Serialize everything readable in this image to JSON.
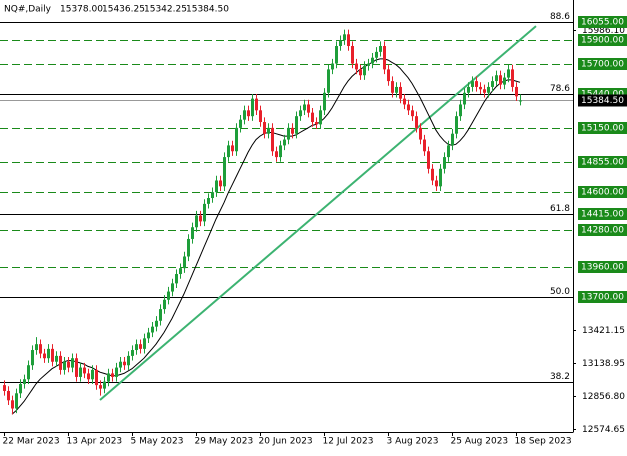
{
  "chart_data": {
    "type": "candlestick",
    "symbol": "NQ#,Daily",
    "header_ohlc": [
      "15378.00",
      "15436.25",
      "15342.25",
      "15384.50"
    ],
    "ylim": [
      12549,
      16158
    ],
    "xlim": [
      -1,
      142.25
    ],
    "yticks": [
      {
        "value": 15986.1,
        "label": "15986.10"
      },
      {
        "value": 13421.15,
        "label": "13421.15"
      },
      {
        "value": 13138.95,
        "label": "13138.95"
      },
      {
        "value": 12856.8,
        "label": "12856.80"
      },
      {
        "value": 12574.65,
        "label": "12574.65"
      }
    ],
    "xticks": [
      {
        "value": 0,
        "label": "22 Mar 2023"
      },
      {
        "value": 16,
        "label": "13 Apr 2023"
      },
      {
        "value": 32,
        "label": "5 May 2023"
      },
      {
        "value": 48,
        "label": "29 May 2023"
      },
      {
        "value": 64,
        "label": "20 Jun 2023"
      },
      {
        "value": 80,
        "label": "12 Jul 2023"
      },
      {
        "value": 96,
        "label": "3 Aug 2023"
      },
      {
        "value": 112,
        "label": "25 Aug 2023"
      },
      {
        "value": 128,
        "label": "18 Sep 2023"
      }
    ],
    "up_color": "#1e9e3a",
    "down_color": "#e8202a",
    "level_color": "#1a8a1a",
    "levels": [
      {
        "value": 16055,
        "label": "16055.00"
      },
      {
        "value": 15900,
        "label": "15900.00"
      },
      {
        "value": 15700,
        "label": "15700.00"
      },
      {
        "value": 15440,
        "label": "15440.00"
      },
      {
        "value": 15150,
        "label": "15150.00"
      },
      {
        "value": 14855,
        "label": "14855.00"
      },
      {
        "value": 14600,
        "label": "14600.00"
      },
      {
        "value": 14415,
        "label": "14415.00"
      },
      {
        "value": 14280,
        "label": "14280.00"
      },
      {
        "value": 13960,
        "label": "13960.00"
      },
      {
        "value": 13700,
        "label": "13700.00"
      }
    ],
    "fib_levels": [
      {
        "value": 16055,
        "label": "88.6"
      },
      {
        "value": 15440,
        "label": "78.6"
      },
      {
        "value": 14415,
        "label": "61.8"
      },
      {
        "value": 13700,
        "label": "50.0"
      },
      {
        "value": 12980,
        "label": "38.2"
      }
    ],
    "current_price": {
      "value": 15384.5,
      "label": "15384.50"
    },
    "trendline": {
      "x": [
        24,
        133
      ],
      "y": [
        12823,
        16020
      ],
      "color": "#3cb371"
    },
    "ohlc": [
      [
        12950,
        12990,
        12860,
        12900
      ],
      [
        12900,
        12940,
        12780,
        12820
      ],
      [
        12820,
        12860,
        12700,
        12750
      ],
      [
        12750,
        12920,
        12710,
        12880
      ],
      [
        12880,
        13000,
        12840,
        12960
      ],
      [
        12960,
        13040,
        12920,
        13000
      ],
      [
        13000,
        13160,
        12960,
        13120
      ],
      [
        13120,
        13290,
        13080,
        13250
      ],
      [
        13250,
        13360,
        13210,
        13300
      ],
      [
        13300,
        13340,
        13180,
        13220
      ],
      [
        13220,
        13260,
        13140,
        13180
      ],
      [
        13180,
        13300,
        13140,
        13260
      ],
      [
        13260,
        13300,
        13110,
        13150
      ],
      [
        13150,
        13240,
        13110,
        13200
      ],
      [
        13200,
        13240,
        13040,
        13080
      ],
      [
        13080,
        13190,
        13040,
        13150
      ],
      [
        13150,
        13190,
        13060,
        13100
      ],
      [
        13100,
        13220,
        13060,
        13180
      ],
      [
        13180,
        13220,
        12980,
        13020
      ],
      [
        13020,
        13140,
        12980,
        13100
      ],
      [
        13100,
        13140,
        13010,
        13050
      ],
      [
        13050,
        13090,
        12960,
        13000
      ],
      [
        13000,
        13120,
        12960,
        13080
      ],
      [
        13080,
        13120,
        12910,
        12950
      ],
      [
        12950,
        12990,
        12860,
        12920
      ],
      [
        12920,
        13020,
        12880,
        12980
      ],
      [
        12980,
        13090,
        12940,
        13050
      ],
      [
        13050,
        13090,
        12980,
        13020
      ],
      [
        13020,
        13140,
        12980,
        13100
      ],
      [
        13100,
        13190,
        13060,
        13150
      ],
      [
        13150,
        13190,
        13080,
        13120
      ],
      [
        13120,
        13240,
        13080,
        13200
      ],
      [
        13200,
        13290,
        13160,
        13250
      ],
      [
        13250,
        13340,
        13210,
        13300
      ],
      [
        13300,
        13340,
        13220,
        13260
      ],
      [
        13260,
        13390,
        13220,
        13350
      ],
      [
        13350,
        13440,
        13310,
        13400
      ],
      [
        13400,
        13490,
        13360,
        13450
      ],
      [
        13450,
        13540,
        13410,
        13500
      ],
      [
        13500,
        13640,
        13460,
        13600
      ],
      [
        13600,
        13720,
        13560,
        13680
      ],
      [
        13680,
        13790,
        13640,
        13750
      ],
      [
        13750,
        13860,
        13710,
        13820
      ],
      [
        13820,
        13940,
        13780,
        13900
      ],
      [
        13900,
        13990,
        13860,
        13950
      ],
      [
        13950,
        14090,
        13910,
        14050
      ],
      [
        14050,
        14240,
        14010,
        14200
      ],
      [
        14200,
        14340,
        14160,
        14300
      ],
      [
        14300,
        14440,
        14260,
        14400
      ],
      [
        14400,
        14440,
        14310,
        14350
      ],
      [
        14350,
        14540,
        14310,
        14500
      ],
      [
        14500,
        14590,
        14460,
        14550
      ],
      [
        14550,
        14640,
        14510,
        14600
      ],
      [
        14600,
        14740,
        14560,
        14700
      ],
      [
        14700,
        14740,
        14610,
        14650
      ],
      [
        14650,
        14940,
        14610,
        14900
      ],
      [
        14900,
        15040,
        14860,
        15000
      ],
      [
        15000,
        15040,
        14910,
        14950
      ],
      [
        14950,
        15190,
        14910,
        15150
      ],
      [
        15150,
        15260,
        15110,
        15220
      ],
      [
        15220,
        15340,
        15180,
        15300
      ],
      [
        15300,
        15340,
        15210,
        15250
      ],
      [
        15250,
        15440,
        15210,
        15400
      ],
      [
        15400,
        15440,
        15260,
        15300
      ],
      [
        15300,
        15340,
        15160,
        15200
      ],
      [
        15200,
        15240,
        15060,
        15100
      ],
      [
        15100,
        15190,
        15060,
        15150
      ],
      [
        15150,
        15190,
        14910,
        14950
      ],
      [
        14950,
        14990,
        14860,
        14900
      ],
      [
        14900,
        15040,
        14860,
        15000
      ],
      [
        15000,
        15090,
        14960,
        15050
      ],
      [
        15050,
        15190,
        15010,
        15150
      ],
      [
        15150,
        15190,
        15060,
        15100
      ],
      [
        15100,
        15290,
        15060,
        15250
      ],
      [
        15250,
        15340,
        15210,
        15300
      ],
      [
        15300,
        15390,
        15260,
        15350
      ],
      [
        15350,
        15390,
        15240,
        15280
      ],
      [
        15280,
        15320,
        15160,
        15200
      ],
      [
        15200,
        15240,
        15140,
        15180
      ],
      [
        15180,
        15340,
        15140,
        15300
      ],
      [
        15300,
        15490,
        15260,
        15450
      ],
      [
        15450,
        15690,
        15410,
        15650
      ],
      [
        15650,
        15740,
        15610,
        15700
      ],
      [
        15700,
        15890,
        15660,
        15850
      ],
      [
        15850,
        15940,
        15810,
        15900
      ],
      [
        15900,
        15990,
        15860,
        15950
      ],
      [
        15950,
        15990,
        15810,
        15850
      ],
      [
        15850,
        15890,
        15660,
        15700
      ],
      [
        15700,
        15740,
        15610,
        15650
      ],
      [
        15650,
        15690,
        15560,
        15600
      ],
      [
        15600,
        15720,
        15560,
        15680
      ],
      [
        15680,
        15740,
        15640,
        15700
      ],
      [
        15700,
        15790,
        15660,
        15750
      ],
      [
        15750,
        15840,
        15710,
        15800
      ],
      [
        15800,
        15890,
        15760,
        15850
      ],
      [
        15850,
        15890,
        15610,
        15650
      ],
      [
        15650,
        15690,
        15510,
        15550
      ],
      [
        15550,
        15590,
        15410,
        15450
      ],
      [
        15450,
        15540,
        15410,
        15500
      ],
      [
        15500,
        15540,
        15360,
        15400
      ],
      [
        15400,
        15440,
        15310,
        15350
      ],
      [
        15350,
        15390,
        15260,
        15300
      ],
      [
        15300,
        15340,
        15210,
        15250
      ],
      [
        15250,
        15290,
        15110,
        15150
      ],
      [
        15150,
        15190,
        15010,
        15050
      ],
      [
        15050,
        15090,
        14910,
        14950
      ],
      [
        14950,
        14990,
        14760,
        14800
      ],
      [
        14800,
        14840,
        14660,
        14700
      ],
      [
        14700,
        14740,
        14610,
        14650
      ],
      [
        14650,
        14840,
        14610,
        14800
      ],
      [
        14800,
        14940,
        14760,
        14900
      ],
      [
        14900,
        15040,
        14860,
        15000
      ],
      [
        15000,
        15140,
        14960,
        15100
      ],
      [
        15100,
        15290,
        15060,
        15250
      ],
      [
        15250,
        15390,
        15210,
        15350
      ],
      [
        15350,
        15490,
        15310,
        15450
      ],
      [
        15450,
        15540,
        15410,
        15500
      ],
      [
        15500,
        15590,
        15460,
        15550
      ],
      [
        15550,
        15590,
        15460,
        15500
      ],
      [
        15500,
        15540,
        15440,
        15480
      ],
      [
        15480,
        15520,
        15410,
        15450
      ],
      [
        15450,
        15540,
        15410,
        15500
      ],
      [
        15500,
        15590,
        15460,
        15550
      ],
      [
        15550,
        15640,
        15510,
        15600
      ],
      [
        15600,
        15640,
        15480,
        15520
      ],
      [
        15520,
        15620,
        15480,
        15580
      ],
      [
        15580,
        15690,
        15540,
        15650
      ],
      [
        15650,
        15690,
        15460,
        15500
      ],
      [
        15500,
        15540,
        15380,
        15420
      ],
      [
        15378,
        15436.25,
        15342.25,
        15384.5
      ]
    ],
    "ma": [
      null,
      null,
      12700,
      12730,
      12770,
      12810,
      12860,
      12910,
      12960,
      13000,
      13030,
      13060,
      13090,
      13110,
      13130,
      13150,
      13160,
      13160,
      13150,
      13140,
      13130,
      13110,
      13100,
      13080,
      13060,
      13050,
      13040,
      13030,
      13030,
      13040,
      13050,
      13070,
      13090,
      13120,
      13150,
      13180,
      13220,
      13260,
      13300,
      13350,
      13400,
      13460,
      13520,
      13590,
      13660,
      13730,
      13810,
      13890,
      13970,
      14050,
      14130,
      14210,
      14290,
      14370,
      14440,
      14510,
      14590,
      14660,
      14730,
      14800,
      14870,
      14940,
      15000,
      15050,
      15080,
      15100,
      15110,
      15110,
      15100,
      15090,
      15080,
      15080,
      15080,
      15090,
      15110,
      15130,
      15150,
      15170,
      15180,
      15200,
      15230,
      15270,
      15320,
      15380,
      15440,
      15500,
      15550,
      15590,
      15620,
      15650,
      15670,
      15690,
      15710,
      15730,
      15740,
      15740,
      15730,
      15710,
      15690,
      15660,
      15620,
      15580,
      15530,
      15470,
      15410,
      15340,
      15270,
      15200,
      15130,
      15080,
      15040,
      15010,
      15000,
      15010,
      15040,
      15080,
      15130,
      15190,
      15250,
      15310,
      15370,
      15420,
      15460,
      15500,
      15530,
      15550,
      15560,
      15560,
      15550,
      15540
    ],
    "ma_color": "#000000"
  }
}
